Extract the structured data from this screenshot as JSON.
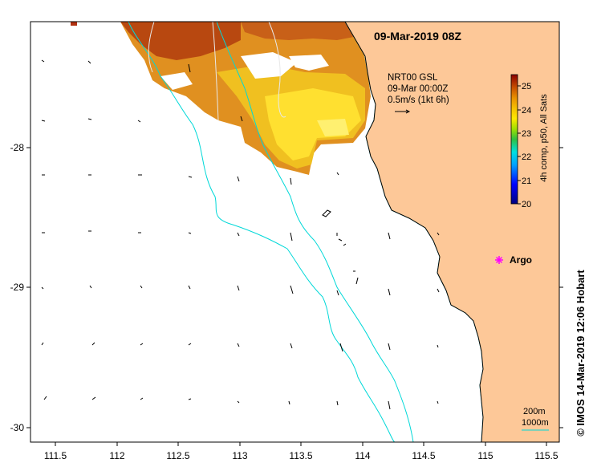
{
  "title": "09-Mar-2019 08Z",
  "current_legend": {
    "line1": "NRT00 GSL",
    "line2": "09-Mar 00:00Z",
    "line3": "0.5m/s (1kt 6h)",
    "arrow_speed_ms": 0.5
  },
  "colorbar": {
    "label": "4h comp, p50, All Sats",
    "min": 20,
    "max": 25.5,
    "ticks": [
      "20",
      "21",
      "22",
      "23",
      "24",
      "25"
    ],
    "colors": [
      "#000080",
      "#0000ff",
      "#00a0ff",
      "#00e0e0",
      "#20c060",
      "#60d020",
      "#c0e000",
      "#ffe000",
      "#f0b000",
      "#e08000",
      "#c04000",
      "#8b0000"
    ]
  },
  "x_ticks": [
    "111.5",
    "112",
    "112.5",
    "113",
    "113.5",
    "114",
    "114.5",
    "115",
    "115.5"
  ],
  "y_ticks": [
    "-28",
    "-29",
    "-30"
  ],
  "argo": {
    "label": "Argo",
    "lon": 115.1,
    "lat": -28.82,
    "color": "#ff00ff"
  },
  "scale_legend": {
    "line1": "200m",
    "line2": "1000m"
  },
  "credit": "© IMOS 14-Mar-2019 12:06 Hobart",
  "colors": {
    "land": "#fdc898",
    "isobath": "#00d8d8",
    "frame": "#000000"
  }
}
